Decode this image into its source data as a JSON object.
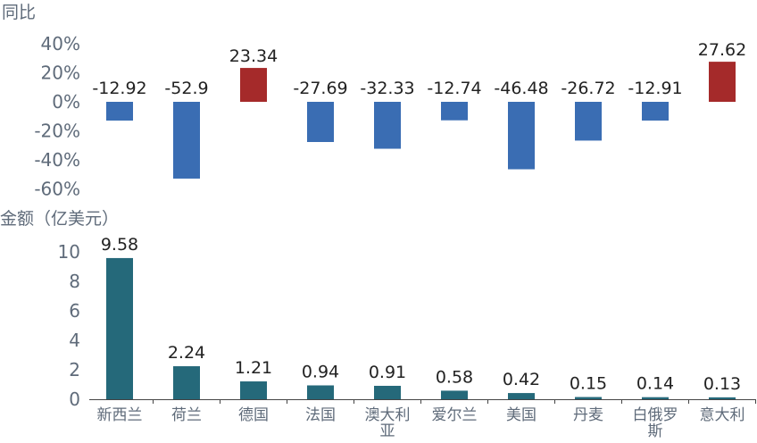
{
  "chart_data": [
    {
      "type": "bar",
      "ylabel": "同比",
      "categories": [
        "新西兰",
        "荷兰",
        "德国",
        "法国",
        "澳大利亚",
        "爱尔兰",
        "美国",
        "丹麦",
        "白俄罗斯",
        "意大利"
      ],
      "values": [
        -12.92,
        -52.9,
        23.34,
        -27.69,
        -32.33,
        -12.74,
        -46.48,
        -26.72,
        -12.91,
        27.62
      ],
      "value_labels": [
        "-12.92",
        "-52.9",
        "23.34",
        "-27.69",
        "-32.33",
        "-12.74",
        "-46.48",
        "-26.72",
        "-12.91",
        "27.62"
      ],
      "yticks": [
        "40%",
        "20%",
        "0%",
        "-20%",
        "-40%",
        "-60%"
      ],
      "ytick_values": [
        40,
        20,
        0,
        -20,
        -40,
        -60
      ],
      "ylim": [
        -60,
        40
      ],
      "colors": {
        "positive": "#A52A2A",
        "negative": "#3A6DB3"
      },
      "grid": false
    },
    {
      "type": "bar",
      "ylabel": "金额（亿美元）",
      "categories": [
        "新西兰",
        "荷兰",
        "德国",
        "法国",
        "澳大利亚",
        "爱尔兰",
        "美国",
        "丹麦",
        "白俄罗斯",
        "意大利"
      ],
      "category_lines": [
        [
          "新西兰"
        ],
        [
          "荷兰"
        ],
        [
          "德国"
        ],
        [
          "法国"
        ],
        [
          "澳大利",
          "亚"
        ],
        [
          "爱尔兰"
        ],
        [
          "美国"
        ],
        [
          "丹麦"
        ],
        [
          "白俄罗",
          "斯"
        ],
        [
          "意大利"
        ]
      ],
      "values": [
        9.58,
        2.24,
        1.21,
        0.94,
        0.91,
        0.58,
        0.42,
        0.15,
        0.14,
        0.13
      ],
      "value_labels": [
        "9.58",
        "2.24",
        "1.21",
        "0.94",
        "0.91",
        "0.58",
        "0.42",
        "0.15",
        "0.14",
        "0.13"
      ],
      "yticks": [
        "10",
        "8",
        "6",
        "4",
        "2",
        "0"
      ],
      "ytick_values": [
        10,
        8,
        6,
        4,
        2,
        0
      ],
      "ylim": [
        0,
        10
      ],
      "colors": {
        "bar": "#25697A",
        "axis": "#444444"
      },
      "grid": false
    }
  ]
}
